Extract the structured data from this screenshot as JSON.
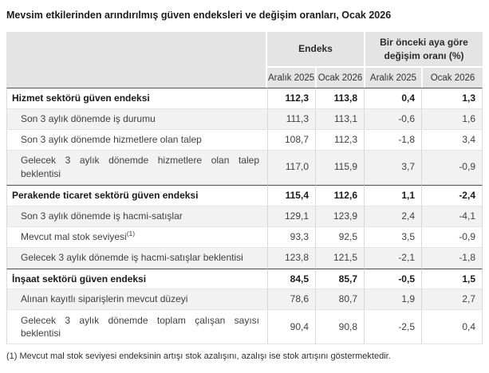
{
  "title": "Mevsim etkilerinden arındırılmış güven endeksleri ve değişim oranları, Ocak 2026",
  "table": {
    "group_headers": {
      "index": "Endeks",
      "change": "Bir önceki aya göre değişim oranı (%)"
    },
    "column_headers": [
      "Aralık 2025",
      "Ocak 2026",
      "Aralık 2025",
      "Ocak 2026"
    ],
    "rows": [
      {
        "label": "Hizmet sektörü güven endeksi",
        "bold": true,
        "values": [
          "112,3",
          "113,8",
          "0,4",
          "1,3"
        ]
      },
      {
        "label": "Son 3 aylık dönemde iş durumu",
        "bold": false,
        "values": [
          "111,3",
          "113,1",
          "-0,6",
          "1,6"
        ]
      },
      {
        "label": "Son 3 aylık dönemde hizmetlere olan talep",
        "bold": false,
        "values": [
          "108,7",
          "112,3",
          "-1,8",
          "3,4"
        ]
      },
      {
        "label": "Gelecek 3 aylık dönemde hizmetlere olan talep beklentisi",
        "bold": false,
        "values": [
          "117,0",
          "115,9",
          "3,7",
          "-0,9"
        ]
      },
      {
        "label": "Perakende ticaret sektörü güven endeksi",
        "bold": true,
        "values": [
          "115,4",
          "112,6",
          "1,1",
          "-2,4"
        ]
      },
      {
        "label": "Son 3 aylık dönemde iş hacmi-satışlar",
        "bold": false,
        "values": [
          "129,1",
          "123,9",
          "2,4",
          "-4,1"
        ]
      },
      {
        "label": "Mevcut mal stok seviyesi",
        "sup": "(1)",
        "bold": false,
        "values": [
          "93,3",
          "92,5",
          "3,5",
          "-0,9"
        ]
      },
      {
        "label": "Gelecek 3 aylık dönemde iş hacmi-satışlar beklentisi",
        "bold": false,
        "values": [
          "123,8",
          "121,5",
          "-2,1",
          "-1,8"
        ]
      },
      {
        "label": "İnşaat sektörü güven endeksi",
        "bold": true,
        "values": [
          "84,5",
          "85,7",
          "-0,5",
          "1,5"
        ]
      },
      {
        "label": "Alınan kayıtlı siparişlerin mevcut düzeyi",
        "bold": false,
        "values": [
          "78,6",
          "80,7",
          "1,9",
          "2,7"
        ]
      },
      {
        "label": "Gelecek 3 aylık dönemde toplam çalışan sayısı beklentisi",
        "bold": false,
        "values": [
          "90,4",
          "90,8",
          "-2,5",
          "0,4"
        ]
      }
    ]
  },
  "footnote": "(1) Mevcut mal stok seviyesi endeksinin artışı stok azalışını, azalışı ise stok artışını göstermektedir.",
  "colors": {
    "header_bg": "#e4e4e4",
    "alt_row_bg": "#f2f2f2",
    "section_border": "#555555",
    "grid_border": "#d9d9d9"
  }
}
